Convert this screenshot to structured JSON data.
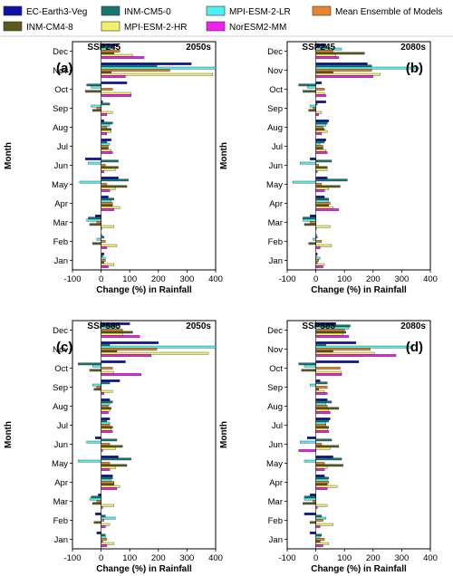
{
  "legend": [
    {
      "name": "EC-Earth3-Veg",
      "color": "#0d12a6"
    },
    {
      "name": "INM-CM5-0",
      "color": "#15776e"
    },
    {
      "name": "MPI-ESM-2-LR",
      "color": "#4ef0f0"
    },
    {
      "name": "Mean Ensemble of Models",
      "color": "#e8842c"
    },
    {
      "name": "INM-CM4-8",
      "color": "#5c5a1a"
    },
    {
      "name": "MPI-ESM-2-HR",
      "color": "#f2f26a"
    },
    {
      "name": "NorESM2-MM",
      "color": "#ee22ee"
    }
  ],
  "chart_data": [
    {
      "type": "bar",
      "panel": "(a)",
      "scenario": "SSP245",
      "period": "2050s",
      "ylabel": "Month",
      "xlabel": "Change (%) in Rainfall",
      "xlim": [
        -100,
        400
      ],
      "xticks": [
        -100,
        0,
        100,
        200,
        300,
        400
      ],
      "categories": [
        "Dec",
        "Nov",
        "Oct",
        "Sep",
        "Aug",
        "Jul",
        "Jun",
        "May",
        "Apr",
        "Mar",
        "Feb",
        "Jan"
      ],
      "series": [
        {
          "name": "EC-Earth3-Veg",
          "values": [
            60,
            315,
            90,
            5,
            10,
            35,
            -55,
            60,
            25,
            -20,
            0,
            10
          ]
        },
        {
          "name": "INM-CM5-0",
          "values": [
            45,
            195,
            -50,
            30,
            40,
            20,
            60,
            95,
            45,
            -45,
            10,
            5
          ]
        },
        {
          "name": "MPI-ESM-2-LR",
          "values": [
            40,
            400,
            -35,
            -35,
            30,
            30,
            -45,
            -75,
            35,
            -50,
            -15,
            15
          ]
        },
        {
          "name": "Mean Ensemble of Models",
          "values": [
            65,
            240,
            40,
            -15,
            20,
            25,
            15,
            20,
            40,
            -15,
            15,
            15
          ]
        },
        {
          "name": "INM-CM4-8",
          "values": [
            45,
            35,
            -55,
            -30,
            35,
            25,
            60,
            90,
            40,
            -40,
            -30,
            10
          ]
        },
        {
          "name": "MPI-ESM-2-HR",
          "values": [
            110,
            390,
            105,
            40,
            35,
            35,
            50,
            50,
            65,
            45,
            55,
            45
          ]
        },
        {
          "name": "NorESM2-MM",
          "values": [
            150,
            85,
            105,
            20,
            20,
            40,
            10,
            30,
            45,
            0,
            20,
            25
          ]
        }
      ]
    },
    {
      "type": "bar",
      "panel": "(b)",
      "scenario": "SSP245",
      "period": "2080s",
      "ylabel": "Month",
      "xlabel": "Change (%) in Rainfall",
      "xlim": [
        -100,
        400
      ],
      "xticks": [
        -100,
        0,
        100,
        200,
        300,
        400
      ],
      "categories": [
        "Dec",
        "Nov",
        "Oct",
        "Sep",
        "Aug",
        "Jul",
        "Jun",
        "May",
        "Apr",
        "Mar",
        "Feb",
        "Jan"
      ],
      "series": [
        {
          "name": "EC-Earth3-Veg",
          "values": [
            35,
            180,
            20,
            35,
            45,
            35,
            -20,
            40,
            30,
            -20,
            0,
            5
          ]
        },
        {
          "name": "INM-CM5-0",
          "values": [
            40,
            195,
            -60,
            5,
            40,
            30,
            55,
            110,
            45,
            -45,
            5,
            0
          ]
        },
        {
          "name": "MPI-ESM-2-LR",
          "values": [
            90,
            360,
            -30,
            -20,
            35,
            15,
            -55,
            -80,
            45,
            -45,
            -10,
            15
          ]
        },
        {
          "name": "Mean Ensemble of Models",
          "values": [
            60,
            195,
            30,
            -10,
            25,
            25,
            10,
            20,
            50,
            -20,
            20,
            10
          ]
        },
        {
          "name": "INM-CM4-8",
          "values": [
            170,
            60,
            -45,
            -25,
            30,
            25,
            40,
            85,
            45,
            -40,
            -25,
            5
          ]
        },
        {
          "name": "MPI-ESM-2-HR",
          "values": [
            70,
            225,
            30,
            20,
            40,
            35,
            40,
            45,
            60,
            50,
            55,
            30
          ]
        },
        {
          "name": "NorESM2-MM",
          "values": [
            80,
            200,
            35,
            10,
            20,
            40,
            5,
            30,
            80,
            0,
            15,
            25
          ]
        }
      ]
    },
    {
      "type": "bar",
      "panel": "(c)",
      "scenario": "SSP585",
      "period": "2050s",
      "ylabel": "Month",
      "xlabel": "Change (%) in Rainfall",
      "xlim": [
        -100,
        400
      ],
      "xticks": [
        -100,
        0,
        100,
        200,
        300,
        400
      ],
      "categories": [
        "Dec",
        "Nov",
        "Oct",
        "Sep",
        "Aug",
        "Jul",
        "Jun",
        "May",
        "Apr",
        "Mar",
        "Feb",
        "Jan"
      ],
      "series": [
        {
          "name": "EC-Earth3-Veg",
          "values": [
            100,
            200,
            85,
            65,
            30,
            30,
            -20,
            60,
            40,
            -10,
            -20,
            -15
          ]
        },
        {
          "name": "INM-CM5-0",
          "values": [
            55,
            30,
            -80,
            30,
            40,
            20,
            55,
            105,
            40,
            -35,
            15,
            15
          ]
        },
        {
          "name": "MPI-ESM-2-LR",
          "values": [
            60,
            400,
            -30,
            -30,
            30,
            30,
            -50,
            -80,
            35,
            -40,
            50,
            15
          ]
        },
        {
          "name": "Mean Ensemble of Models",
          "values": [
            75,
            195,
            40,
            -15,
            25,
            30,
            30,
            30,
            45,
            -15,
            10,
            20
          ]
        },
        {
          "name": "INM-CM4-8",
          "values": [
            110,
            55,
            -40,
            -25,
            35,
            40,
            75,
            90,
            45,
            -30,
            -25,
            5
          ]
        },
        {
          "name": "MPI-ESM-2-HR",
          "values": [
            75,
            375,
            45,
            40,
            30,
            35,
            50,
            50,
            65,
            45,
            30,
            45
          ]
        },
        {
          "name": "NorESM2-MM",
          "values": [
            135,
            175,
            140,
            10,
            25,
            40,
            5,
            30,
            55,
            5,
            15,
            20
          ]
        }
      ]
    },
    {
      "type": "bar",
      "panel": "(d)",
      "scenario": "SSP585",
      "period": "2080s",
      "ylabel": "Month",
      "xlabel": "Change (%) in Rainfall",
      "xlim": [
        -100,
        400
      ],
      "xticks": [
        -100,
        0,
        100,
        200,
        300,
        400
      ],
      "categories": [
        "Dec",
        "Nov",
        "Oct",
        "Sep",
        "Aug",
        "Jul",
        "Jun",
        "May",
        "Apr",
        "Mar",
        "Feb",
        "Jan"
      ],
      "series": [
        {
          "name": "EC-Earth3-Veg",
          "values": [
            70,
            140,
            150,
            15,
            40,
            50,
            -30,
            60,
            30,
            -20,
            -40,
            -20
          ]
        },
        {
          "name": "INM-CM5-0",
          "values": [
            120,
            35,
            -60,
            40,
            55,
            45,
            55,
            90,
            45,
            -40,
            20,
            20
          ]
        },
        {
          "name": "MPI-ESM-2-LR",
          "values": [
            115,
            335,
            -40,
            -20,
            35,
            35,
            -55,
            -40,
            40,
            -40,
            35,
            15
          ]
        },
        {
          "name": "Mean Ensemble of Models",
          "values": [
            100,
            190,
            85,
            40,
            40,
            35,
            20,
            30,
            45,
            -10,
            25,
            30
          ]
        },
        {
          "name": "INM-CM4-8",
          "values": [
            105,
            60,
            -50,
            10,
            80,
            45,
            80,
            95,
            40,
            -45,
            -20,
            15
          ]
        },
        {
          "name": "MPI-ESM-2-HR",
          "values": [
            95,
            205,
            90,
            30,
            45,
            40,
            50,
            40,
            75,
            40,
            60,
            45
          ]
        },
        {
          "name": "NorESM2-MM",
          "values": [
            115,
            280,
            90,
            40,
            50,
            45,
            -60,
            30,
            40,
            5,
            15,
            25
          ]
        }
      ]
    }
  ]
}
